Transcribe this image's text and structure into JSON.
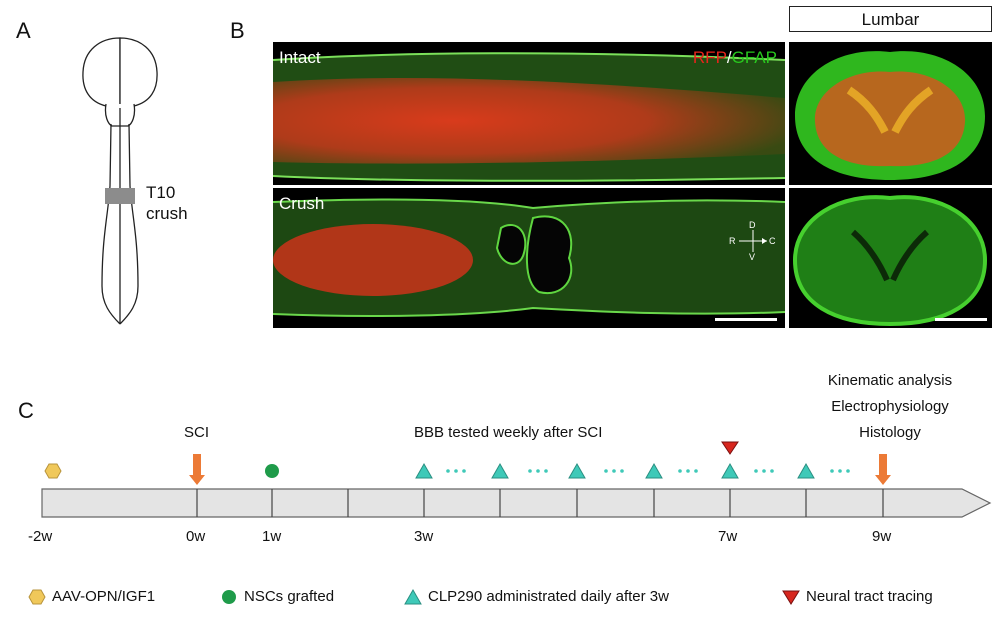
{
  "panels": {
    "a": "A",
    "b": "B",
    "c": "C"
  },
  "panel_a": {
    "injury_label_line1": "T10",
    "injury_label_line2": "crush"
  },
  "panel_b": {
    "lumbar_header": "Lumbar",
    "intact_label": "Intact",
    "crush_label": "Crush",
    "stain_rfp": "RFP",
    "stain_sep": "/",
    "stain_gfap": "GFAP",
    "compass": {
      "d": "D",
      "v": "V",
      "r": "R",
      "c": "C"
    },
    "colors": {
      "rfp": "#e8241c",
      "gfap": "#28c81e"
    }
  },
  "timeline": {
    "sci_label": "SCI",
    "bbb_label": "BBB tested weekly after SCI",
    "endpoint_labels": [
      "Kinematic analysis",
      "Electrophysiology",
      "Histology"
    ],
    "ticks": [
      "-2w",
      "0w",
      "1w",
      "3w",
      "7w",
      "9w"
    ]
  },
  "legend": [
    {
      "icon": "hexagon-icon",
      "color": "#f0c85a",
      "label": "AAV-OPN/IGF1"
    },
    {
      "icon": "circle-icon",
      "color": "#1f9b4a",
      "label": "NSCs grafted"
    },
    {
      "icon": "triangle-up-icon",
      "color": "#3fc9b8",
      "label": "CLP290 administrated daily after 3w"
    },
    {
      "icon": "triangle-down-icon",
      "color": "#d7261e",
      "label": "Neural tract tracing"
    }
  ],
  "marker_colors": {
    "arrow": "#ec7a36",
    "hexagon": "#f0c85a",
    "circle": "#1f9b4a",
    "triangle": "#3fc9b8",
    "dots": "#3fc9b8",
    "tracing": "#d7261e"
  }
}
